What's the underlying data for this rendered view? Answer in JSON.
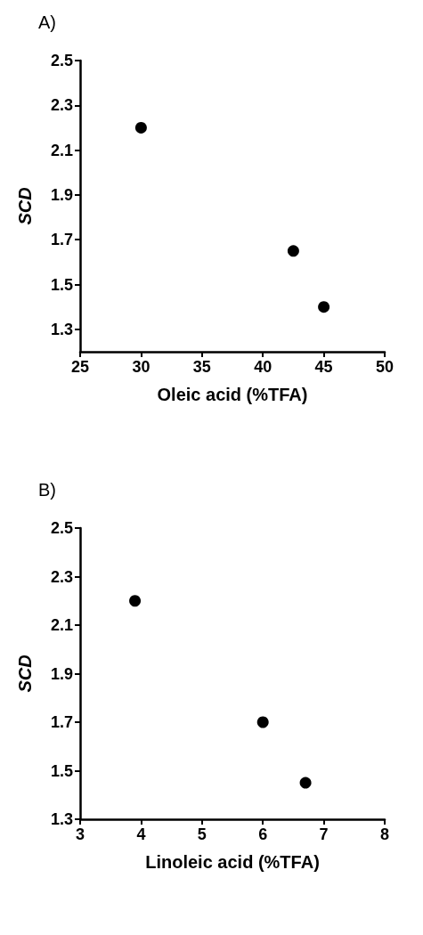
{
  "chart_data": [
    {
      "type": "scatter",
      "title": "A)",
      "xlabel": "Oleic acid (%TFA)",
      "ylabel": "SCD",
      "x": [
        30,
        42.5,
        45
      ],
      "values": [
        2.2,
        1.65,
        1.4
      ],
      "color": "#000000",
      "marker": "circle",
      "xlim": [
        25,
        50
      ],
      "xticks": [
        25,
        30,
        35,
        40,
        45,
        50
      ],
      "ylim": [
        1.2,
        2.5
      ],
      "yticks": [
        1.3,
        1.5,
        1.7,
        1.9,
        2.1,
        2.3,
        2.5
      ]
    },
    {
      "type": "scatter",
      "title": "B)",
      "xlabel": "Linoleic acid (%TFA)",
      "ylabel": "SCD",
      "x": [
        3.9,
        6,
        6.7
      ],
      "values": [
        2.2,
        1.7,
        1.45
      ],
      "color": "#000000",
      "marker": "circle",
      "xlim": [
        3,
        8
      ],
      "xticks": [
        3,
        4,
        5,
        6,
        7,
        8
      ],
      "ylim": [
        1.3,
        2.5
      ],
      "yticks": [
        1.3,
        1.5,
        1.7,
        1.9,
        2.1,
        2.3,
        2.5
      ]
    }
  ]
}
